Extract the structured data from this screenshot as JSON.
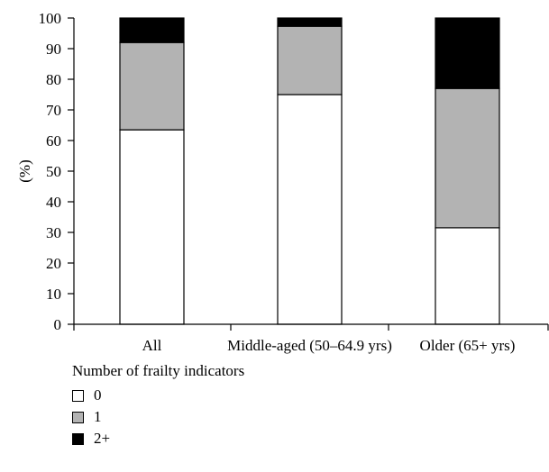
{
  "chart_data": {
    "type": "bar",
    "stacked": true,
    "categories": [
      "All",
      "Middle-aged (50–64.9 yrs)",
      "Older (65+ yrs)"
    ],
    "series": [
      {
        "name": "0",
        "color": "#ffffff",
        "values": [
          63.5,
          75,
          31.5
        ]
      },
      {
        "name": "1",
        "color": "#b3b3b3",
        "values": [
          28.5,
          22.3,
          45.5
        ]
      },
      {
        "name": "2+",
        "color": "#000000",
        "values": [
          8,
          2.7,
          23
        ]
      }
    ],
    "ylabel": "(%)",
    "xlabel": "",
    "ylim": [
      0,
      100
    ],
    "yticks": [
      0,
      10,
      20,
      30,
      40,
      50,
      60,
      70,
      80,
      90,
      100
    ],
    "legend_title": "Number of frailty indicators",
    "legend_position": "bottom-left",
    "grid": false
  }
}
